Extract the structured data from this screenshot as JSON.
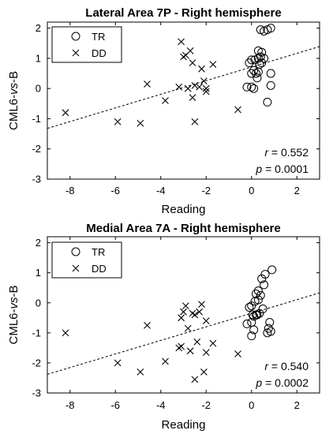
{
  "chart_data": [
    {
      "type": "scatter",
      "title": "Lateral Area 7P - Right hemisphere",
      "xlabel": "Reading",
      "ylabel_parts": [
        "CML6-",
        "vs",
        "-B"
      ],
      "xlim": [
        -9,
        3
      ],
      "ylim": [
        -3,
        2.2
      ],
      "xticks": [
        -8,
        -6,
        -4,
        -2,
        0,
        2
      ],
      "xtick_labels": [
        "-8",
        "-6",
        "-4",
        "-2",
        "0",
        "2"
      ],
      "yticks": [
        -3,
        -2,
        -1,
        0,
        1,
        2
      ],
      "ytick_labels": [
        "-3",
        "-2",
        "-1",
        "0",
        "1",
        "2"
      ],
      "legend_position": "top-left",
      "series": [
        {
          "name": "TR",
          "marker": "circle",
          "x": [
            0.4,
            0.55,
            0.7,
            0.85,
            0.3,
            0.45,
            0.4,
            0.55,
            0.3,
            0.0,
            0.15,
            0.35,
            -0.1,
            0.1,
            0.3,
            0.0,
            0.2,
            0.25,
            0.45,
            0.85,
            -0.2,
            0.0,
            0.1,
            0.7,
            0.85
          ],
          "y": [
            1.95,
            1.9,
            1.95,
            2.0,
            1.25,
            1.2,
            1.05,
            1.0,
            1.0,
            0.95,
            0.95,
            0.8,
            0.85,
            0.6,
            0.55,
            0.5,
            0.5,
            0.35,
            0.85,
            0.5,
            0.05,
            0.05,
            0.0,
            -0.45,
            0.1
          ]
        },
        {
          "name": "DD",
          "marker": "x",
          "x": [
            -8.2,
            -5.9,
            -4.9,
            -4.6,
            -3.8,
            -3.2,
            -3.1,
            -3.0,
            -2.9,
            -2.8,
            -2.7,
            -2.6,
            -2.5,
            -2.6,
            -2.5,
            -2.2,
            -2.3,
            -2.1,
            -2.0,
            -2.0,
            -1.7,
            -0.6
          ],
          "y": [
            -0.8,
            -1.1,
            -1.15,
            0.15,
            -0.4,
            0.05,
            1.55,
            1.05,
            1.1,
            0.0,
            1.25,
            0.85,
            -1.1,
            -0.3,
            0.1,
            0.65,
            0.05,
            0.25,
            -0.1,
            0.0,
            0.8,
            -0.7
          ]
        }
      ],
      "trendline": {
        "x": [
          -9,
          3
        ],
        "y": [
          -1.32,
          1.39
        ]
      },
      "stats": {
        "r": "r = 0.552",
        "p": "p = 0.0001"
      }
    },
    {
      "type": "scatter",
      "title": "Medial Area 7A - Right hemisphere",
      "xlabel": "Reading",
      "ylabel_parts": [
        "CML6-",
        "vs",
        "-B"
      ],
      "xlim": [
        -9,
        3
      ],
      "ylim": [
        -3,
        2.2
      ],
      "xticks": [
        -8,
        -6,
        -4,
        -2,
        0,
        2
      ],
      "xtick_labels": [
        "-8",
        "-6",
        "-4",
        "-2",
        "0",
        "2"
      ],
      "yticks": [
        -3,
        -2,
        -1,
        0,
        1,
        2
      ],
      "ytick_labels": [
        "-3",
        "-2",
        "-1",
        "0",
        "1",
        "2"
      ],
      "legend_position": "top-left",
      "series": [
        {
          "name": "TR",
          "marker": "circle",
          "x": [
            0.9,
            0.6,
            0.45,
            0.55,
            0.3,
            0.4,
            0.2,
            0.3,
            0.15,
            0.0,
            0.5,
            0.35,
            0.2,
            -0.1,
            0.05,
            0.25,
            0.1,
            0.0,
            -0.2,
            0.8,
            0.75,
            0.1,
            0.0,
            0.7,
            0.85
          ],
          "y": [
            1.1,
            0.95,
            0.8,
            0.6,
            0.4,
            0.25,
            0.3,
            0.1,
            0.05,
            -0.1,
            -0.2,
            -0.35,
            -0.4,
            -0.15,
            -0.4,
            -0.4,
            -0.45,
            -0.65,
            -0.7,
            -0.65,
            -0.85,
            -0.9,
            -1.1,
            -1.0,
            -0.95
          ]
        },
        {
          "name": "DD",
          "marker": "x",
          "x": [
            -8.2,
            -5.9,
            -4.9,
            -4.6,
            -3.8,
            -3.2,
            -3.1,
            -3.0,
            -2.9,
            -2.8,
            -2.7,
            -2.6,
            -2.5,
            -2.4,
            -2.3,
            -2.2,
            -2.1,
            -2.0,
            -2.0,
            -1.7,
            -0.6,
            -3.1,
            -2.5
          ],
          "y": [
            -1.0,
            -2.0,
            -2.3,
            -0.75,
            -1.95,
            -1.5,
            -0.5,
            -0.3,
            -0.1,
            -0.85,
            -1.6,
            -0.35,
            -2.55,
            -1.3,
            -0.3,
            -0.05,
            -2.3,
            -0.6,
            -1.65,
            -1.35,
            -1.7,
            -1.45,
            -0.4
          ]
        }
      ],
      "trendline": {
        "x": [
          -9,
          3
        ],
        "y": [
          -2.38,
          0.33
        ]
      },
      "stats": {
        "r": "r = 0.540",
        "p": "p = 0.0002"
      }
    }
  ]
}
